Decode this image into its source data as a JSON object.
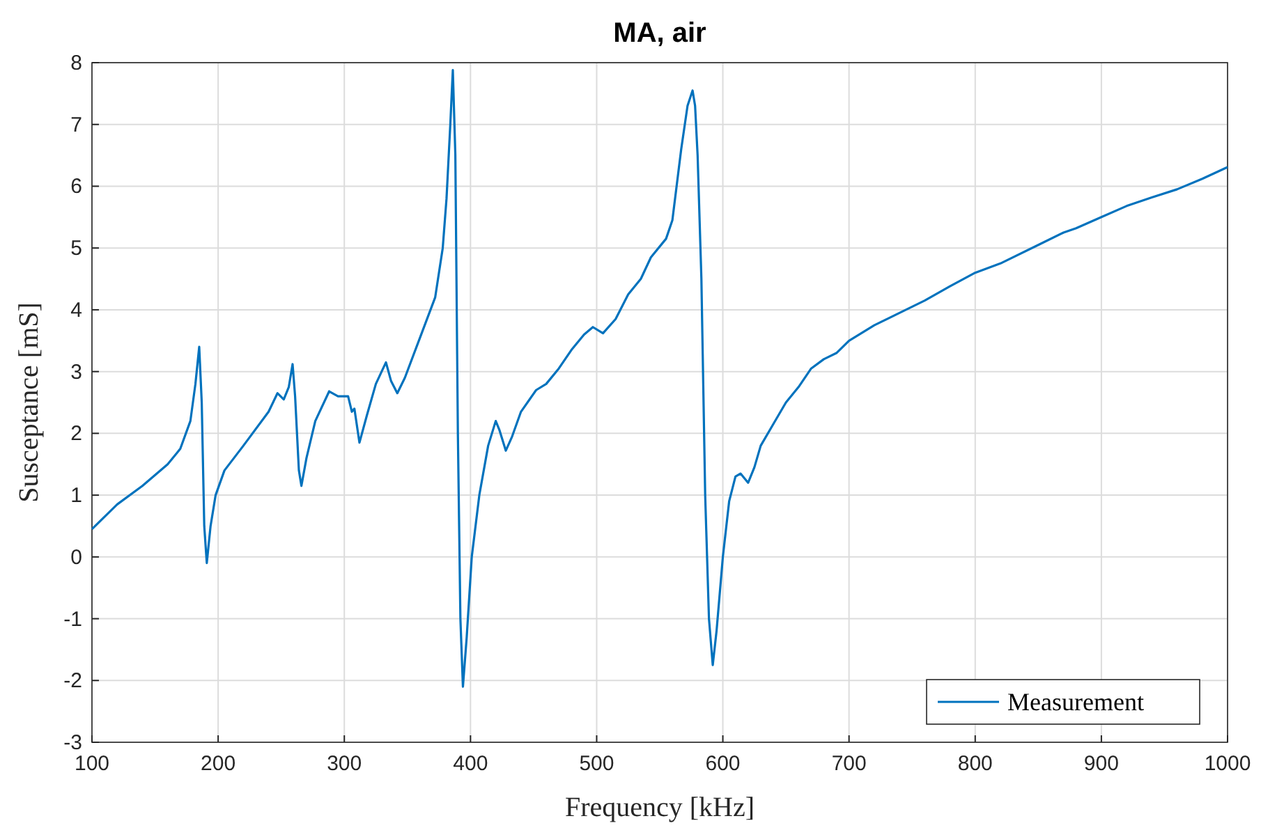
{
  "chart_data": {
    "type": "line",
    "title": "MA, air",
    "xlabel": "Frequency [kHz]",
    "ylabel": "Susceptance [mS]",
    "xlim": [
      100,
      1000
    ],
    "xticks": [
      100,
      200,
      300,
      400,
      500,
      600,
      700,
      800,
      900,
      1000
    ],
    "ylim": [
      -3,
      8
    ],
    "yticks": [
      -3,
      -2,
      -1,
      0,
      1,
      2,
      3,
      4,
      5,
      6,
      7,
      8
    ],
    "grid": true,
    "legend": "bottom right",
    "series": [
      {
        "name": "Measurement",
        "color": "#0072bd",
        "x": [
          100,
          120,
          140,
          160,
          170,
          178,
          182,
          185,
          187,
          189,
          191,
          194,
          198,
          205,
          220,
          240,
          247,
          252,
          256,
          259,
          261,
          264,
          266,
          270,
          277,
          288,
          295,
          303,
          306,
          308,
          312,
          318,
          325,
          333,
          337,
          342,
          348,
          360,
          372,
          378,
          381,
          384,
          386,
          388,
          390,
          392,
          394,
          397,
          401,
          407,
          414,
          420,
          423,
          428,
          433,
          440,
          452,
          460,
          470,
          480,
          490,
          497,
          505,
          515,
          525,
          535,
          543,
          555,
          560,
          567,
          572,
          576,
          578,
          580,
          583,
          586,
          589,
          592,
          595,
          600,
          605,
          610,
          614,
          620,
          625,
          630,
          640,
          650,
          660,
          670,
          680,
          690,
          700,
          720,
          740,
          760,
          780,
          800,
          820,
          850,
          870,
          880,
          900,
          920,
          940,
          960,
          980,
          1000
        ],
        "values": [
          0.45,
          0.85,
          1.15,
          1.5,
          1.75,
          2.2,
          2.8,
          3.4,
          2.5,
          0.5,
          -0.1,
          0.5,
          1.0,
          1.4,
          1.8,
          2.35,
          2.65,
          2.55,
          2.75,
          3.12,
          2.6,
          1.4,
          1.15,
          1.6,
          2.2,
          2.68,
          2.6,
          2.6,
          2.35,
          2.4,
          1.85,
          2.3,
          2.8,
          3.15,
          2.85,
          2.65,
          2.9,
          3.55,
          4.2,
          5.0,
          5.8,
          7.0,
          7.88,
          6.5,
          2.0,
          -1.0,
          -2.1,
          -1.3,
          0.0,
          1.0,
          1.8,
          2.2,
          2.05,
          1.72,
          1.95,
          2.35,
          2.7,
          2.8,
          3.05,
          3.35,
          3.6,
          3.72,
          3.62,
          3.85,
          4.25,
          4.5,
          4.85,
          5.15,
          5.45,
          6.6,
          7.3,
          7.55,
          7.3,
          6.5,
          4.5,
          1.0,
          -1.0,
          -1.75,
          -1.2,
          0.0,
          0.9,
          1.3,
          1.35,
          1.2,
          1.45,
          1.8,
          2.15,
          2.5,
          2.75,
          3.05,
          3.2,
          3.3,
          3.5,
          3.75,
          3.95,
          4.15,
          4.38,
          4.6,
          4.75,
          5.05,
          5.25,
          5.32,
          5.5,
          5.68,
          5.82,
          5.95,
          6.12,
          6.31
        ]
      }
    ]
  }
}
